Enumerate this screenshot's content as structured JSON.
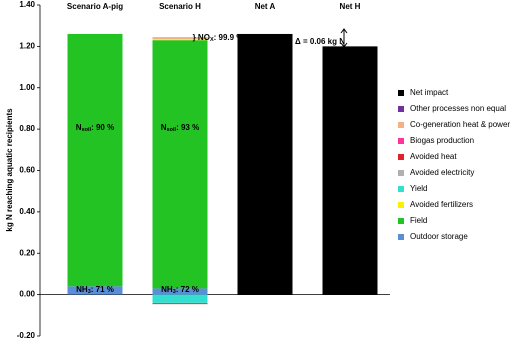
{
  "chart_data": {
    "type": "bar",
    "stacked": true,
    "y_label": "kg N reaching aquatic recipients",
    "categories": [
      "Scenario A-pig",
      "Scenario  H",
      "Net A",
      "Net H"
    ],
    "ylim": [
      -0.2,
      1.4
    ],
    "yticks": [
      {
        "value": -0.2,
        "label": "-0.20"
      },
      {
        "value": 0,
        "label": "0.00"
      },
      {
        "value": 0.2,
        "label": "0.20"
      },
      {
        "value": 0.4,
        "label": "0.40"
      },
      {
        "value": 0.6,
        "label": "0.60"
      },
      {
        "value": 0.8,
        "label": "0.80"
      },
      {
        "value": 1,
        "label": "1.00"
      },
      {
        "value": 1.2,
        "label": "1.20"
      },
      {
        "value": 1.4,
        "label": "1.40"
      }
    ],
    "series": [
      {
        "name": "Net impact",
        "color": "#000000",
        "values": [
          null,
          null,
          1.26,
          1.2
        ]
      },
      {
        "name": "Other processes non equal",
        "color": "#7030a0",
        "values": [
          null,
          null,
          null,
          null
        ]
      },
      {
        "name": "Co-generation heat & power",
        "color": "#f4b183",
        "values": [
          null,
          0.01,
          null,
          null
        ]
      },
      {
        "name": "Biogas production",
        "color": "#ff3399",
        "values": [
          null,
          null,
          null,
          null
        ]
      },
      {
        "name": "Avoided heat",
        "color": "#e0202a",
        "values": [
          null,
          -0.004,
          null,
          null
        ]
      },
      {
        "name": "Avoided electricity",
        "color": "#b0b0b0",
        "values": [
          null,
          -0.002,
          null,
          null
        ]
      },
      {
        "name": "Yield",
        "color": "#33e0d0",
        "values": [
          null,
          -0.04,
          null,
          null
        ]
      },
      {
        "name": "Avoided fertilizers",
        "color": "#ffee00",
        "values": [
          null,
          0.005,
          null,
          null
        ]
      },
      {
        "name": "Field",
        "color": "#22c322",
        "values": [
          1.22,
          1.2,
          null,
          null
        ]
      },
      {
        "name": "Outdoor storage",
        "color": "#5b8ed6",
        "values": [
          0.04,
          0.03,
          null,
          null
        ]
      }
    ],
    "annotations": [
      {
        "main": "N",
        "sub": "soil",
        "rest": ": 90 %"
      },
      {
        "main": "N",
        "sub": "soil",
        "rest": ": 93 %"
      },
      {
        "main": "NH",
        "sub": "3",
        "rest": ": 71 %"
      },
      {
        "main": "NH",
        "sub": "3",
        "rest": ": 72 %"
      },
      {
        "main": "} NO",
        "sub": "X",
        "rest": ": 99.9 %"
      },
      {
        "main": "Δ = 0.06 kg N",
        "sub": "",
        "rest": ""
      }
    ]
  }
}
